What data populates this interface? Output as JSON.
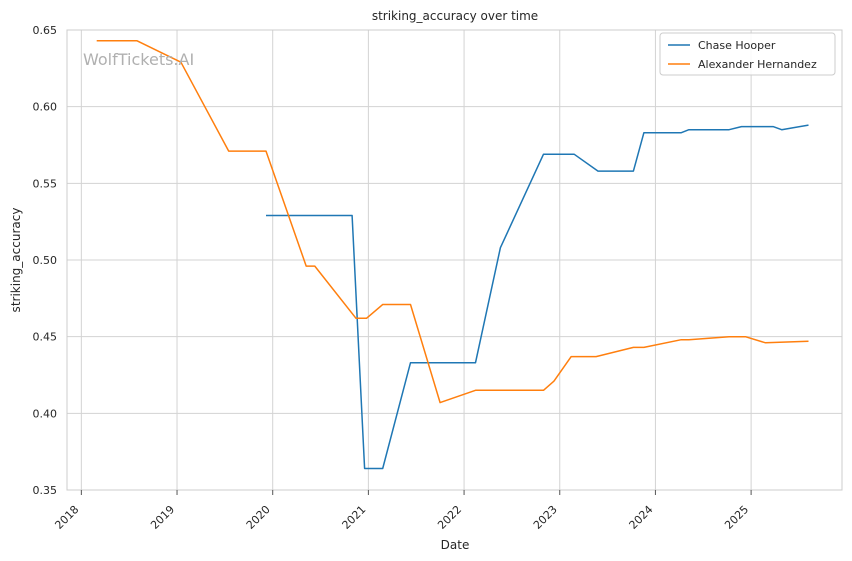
{
  "chart_data": {
    "type": "line",
    "title": "striking_accuracy over time",
    "xlabel": "Date",
    "ylabel": "striking_accuracy",
    "watermark": "WolfTickets.AI",
    "xlim": [
      2017.85,
      2025.95
    ],
    "ylim": [
      0.35,
      0.65
    ],
    "x_ticks": [
      2018,
      2019,
      2020,
      2021,
      2022,
      2023,
      2024,
      2025
    ],
    "x_tick_labels": [
      "2018",
      "2019",
      "2020",
      "2021",
      "2022",
      "2023",
      "2024",
      "2025"
    ],
    "y_ticks": [
      0.35,
      0.4,
      0.45,
      0.5,
      0.55,
      0.6,
      0.65
    ],
    "y_tick_labels": [
      "0.35",
      "0.40",
      "0.45",
      "0.50",
      "0.55",
      "0.60",
      "0.65"
    ],
    "grid": true,
    "legend_position": "top-right",
    "series": [
      {
        "name": "Chase Hooper",
        "color": "#1f77b4",
        "points": [
          [
            2019.93,
            0.529
          ],
          [
            2020.83,
            0.529
          ],
          [
            2020.96,
            0.364
          ],
          [
            2021.15,
            0.364
          ],
          [
            2021.44,
            0.433
          ],
          [
            2022.12,
            0.433
          ],
          [
            2022.38,
            0.508
          ],
          [
            2022.83,
            0.569
          ],
          [
            2023.15,
            0.569
          ],
          [
            2023.4,
            0.558
          ],
          [
            2023.77,
            0.558
          ],
          [
            2023.88,
            0.583
          ],
          [
            2024.27,
            0.583
          ],
          [
            2024.35,
            0.585
          ],
          [
            2024.77,
            0.585
          ],
          [
            2024.9,
            0.587
          ],
          [
            2025.23,
            0.587
          ],
          [
            2025.32,
            0.585
          ],
          [
            2025.6,
            0.588
          ]
        ]
      },
      {
        "name": "Alexander Hernandez",
        "color": "#ff7f0e",
        "points": [
          [
            2018.16,
            0.643
          ],
          [
            2018.58,
            0.643
          ],
          [
            2019.04,
            0.629
          ],
          [
            2019.54,
            0.571
          ],
          [
            2019.93,
            0.571
          ],
          [
            2020.35,
            0.496
          ],
          [
            2020.44,
            0.496
          ],
          [
            2020.87,
            0.462
          ],
          [
            2020.98,
            0.462
          ],
          [
            2021.15,
            0.471
          ],
          [
            2021.44,
            0.471
          ],
          [
            2021.75,
            0.407
          ],
          [
            2022.12,
            0.415
          ],
          [
            2022.83,
            0.415
          ],
          [
            2022.94,
            0.421
          ],
          [
            2023.12,
            0.437
          ],
          [
            2023.38,
            0.437
          ],
          [
            2023.77,
            0.443
          ],
          [
            2023.88,
            0.443
          ],
          [
            2024.27,
            0.448
          ],
          [
            2024.35,
            0.448
          ],
          [
            2024.77,
            0.45
          ],
          [
            2024.94,
            0.45
          ],
          [
            2025.15,
            0.446
          ],
          [
            2025.6,
            0.447
          ]
        ]
      }
    ]
  }
}
